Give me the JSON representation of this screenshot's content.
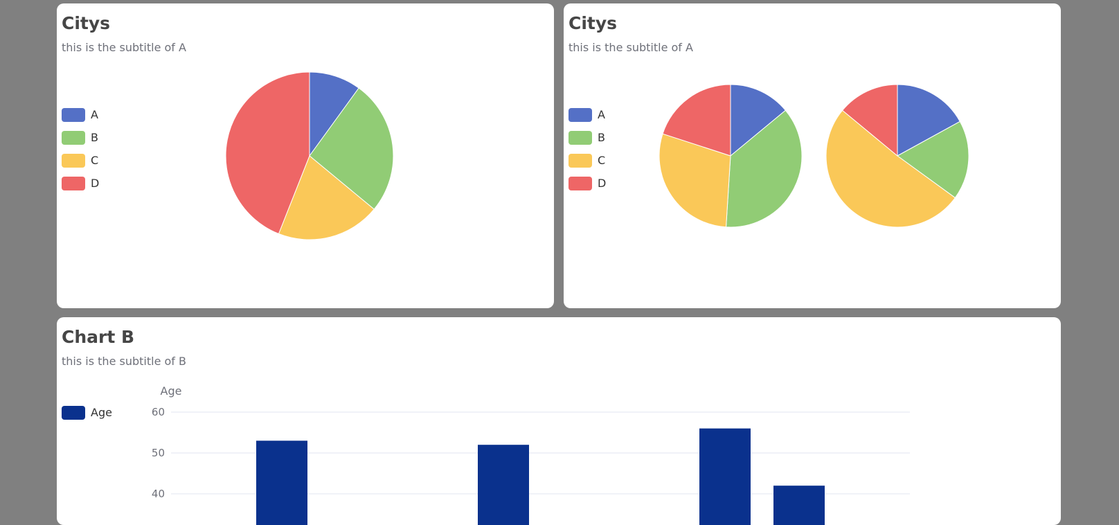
{
  "chart_data": [
    {
      "type": "pie",
      "title": "Citys",
      "subtitle": "this is the subtitle of A",
      "legend_position": "left",
      "categories": [
        "A",
        "B",
        "C",
        "D"
      ],
      "colors": [
        "#5470c6",
        "#91cc75",
        "#fac858",
        "#ee6666"
      ],
      "pies": [
        {
          "values": [
            10,
            26,
            20,
            44
          ]
        }
      ]
    },
    {
      "type": "pie",
      "title": "Citys",
      "subtitle": "this is the subtitle of A",
      "legend_position": "left",
      "categories": [
        "A",
        "B",
        "C",
        "D"
      ],
      "colors": [
        "#5470c6",
        "#91cc75",
        "#fac858",
        "#ee6666"
      ],
      "pies": [
        {
          "values": [
            14,
            37,
            29,
            20
          ]
        },
        {
          "values": [
            17,
            18,
            51,
            14
          ]
        }
      ]
    },
    {
      "type": "bar",
      "title": "Chart B",
      "subtitle": "this is the subtitle of B",
      "legend_position": "left",
      "ylabel": "Age",
      "series": [
        {
          "name": "Age",
          "color": "#0a318d",
          "values": [
            53,
            52,
            56,
            42
          ]
        }
      ],
      "yticks": [
        60,
        50,
        40
      ],
      "ylim": [
        0,
        60
      ],
      "grid": true
    }
  ]
}
